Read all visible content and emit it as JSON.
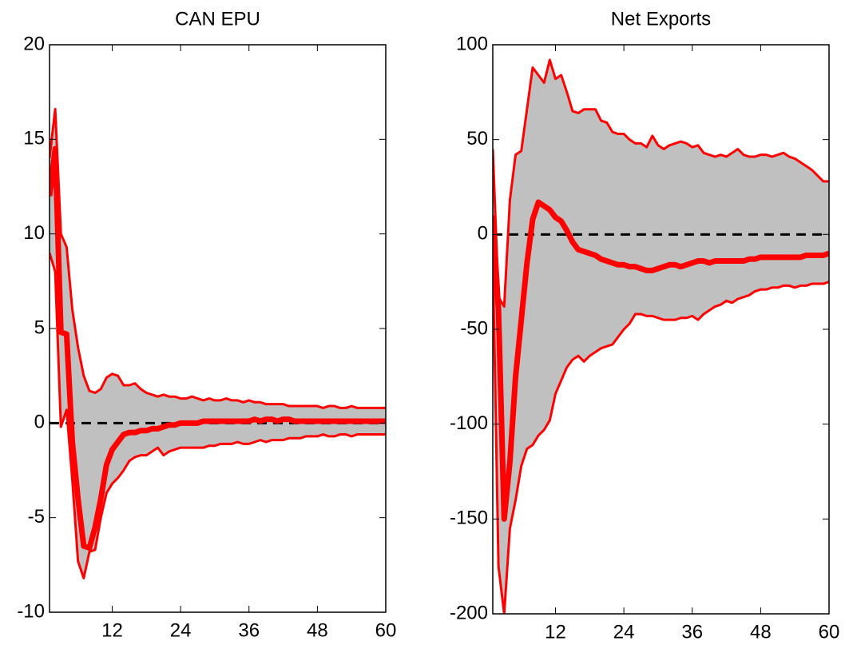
{
  "chart_data": [
    {
      "type": "line",
      "title": "CAN EPU",
      "x": [
        1,
        2,
        3,
        4,
        5,
        6,
        7,
        8,
        9,
        10,
        11,
        12,
        13,
        14,
        15,
        16,
        17,
        18,
        19,
        20,
        21,
        22,
        23,
        24,
        25,
        26,
        27,
        28,
        29,
        30,
        31,
        32,
        33,
        34,
        35,
        36,
        37,
        38,
        39,
        40,
        41,
        42,
        43,
        44,
        45,
        46,
        47,
        48,
        49,
        50,
        51,
        52,
        53,
        54,
        55,
        56,
        57,
        58,
        59,
        60
      ],
      "xlim": [
        1,
        60
      ],
      "xticks": [
        12,
        24,
        36,
        48,
        60
      ],
      "ylim": [
        -10,
        20
      ],
      "yticks": [
        -10,
        -5,
        0,
        5,
        10,
        15,
        20
      ],
      "reference_line": {
        "value": 0,
        "color": "#000000",
        "style": "dashed"
      },
      "band": {
        "fill": "#c0c0c0",
        "color": "#ff0000",
        "upper": [
          14,
          16.6,
          10,
          9.3,
          6,
          4,
          2.5,
          1.7,
          1.6,
          1.8,
          2.4,
          2.6,
          2.5,
          2,
          2,
          2.1,
          1.8,
          1.6,
          1.5,
          1.4,
          1.5,
          1.4,
          1.4,
          1.3,
          1.3,
          1.4,
          1.3,
          1.2,
          1.3,
          1.2,
          1.2,
          1.3,
          1.2,
          1.2,
          1.1,
          1.2,
          1.1,
          1.1,
          1,
          1,
          1,
          1,
          0.9,
          0.9,
          0.9,
          0.9,
          0.9,
          0.9,
          0.8,
          0.9,
          0.9,
          0.8,
          0.8,
          0.9,
          0.8,
          0.8,
          0.8,
          0.8,
          0.8,
          0.8
        ],
        "lower": [
          9,
          8,
          -0.2,
          0.7,
          -3,
          -7.3,
          -8.2,
          -6.8,
          -6.7,
          -5,
          -3.7,
          -3.2,
          -2.9,
          -2.5,
          -2,
          -1.8,
          -1.7,
          -1.7,
          -1.5,
          -1.3,
          -1.7,
          -1.5,
          -1.4,
          -1.3,
          -1.3,
          -1.3,
          -1.3,
          -1.3,
          -1.2,
          -1.2,
          -1.1,
          -1.1,
          -1.1,
          -1,
          -1.1,
          -1.1,
          -1,
          -0.9,
          -1,
          -0.9,
          -0.9,
          -0.9,
          -0.8,
          -0.8,
          -0.8,
          -0.7,
          -0.7,
          -0.7,
          -0.6,
          -0.7,
          -0.7,
          -0.6,
          -0.6,
          -0.7,
          -0.6,
          -0.6,
          -0.6,
          -0.6,
          -0.6,
          -0.6
        ]
      },
      "series": [
        {
          "color": "#ff0000",
          "values": [
            12,
            14.5,
            4.8,
            4.7,
            -1,
            -4,
            -6.5,
            -6.6,
            -5.5,
            -4,
            -2.2,
            -1.4,
            -1,
            -0.6,
            -0.5,
            -0.5,
            -0.4,
            -0.4,
            -0.3,
            -0.3,
            -0.2,
            -0.1,
            -0.1,
            0,
            0,
            0,
            0,
            0.1,
            0.1,
            0.1,
            0.1,
            0.1,
            0.1,
            0.1,
            0.1,
            0.1,
            0.2,
            0.1,
            0.2,
            0.2,
            0.1,
            0.2,
            0.2,
            0.1,
            0.1,
            0.1,
            0.1,
            0.1,
            0.1,
            0.1,
            0.1,
            0.1,
            0.1,
            0.1,
            0.1,
            0.1,
            0.1,
            0.1,
            0.1,
            0.1
          ]
        }
      ]
    },
    {
      "type": "line",
      "title": "Net Exports",
      "x": [
        1,
        2,
        3,
        4,
        5,
        6,
        7,
        8,
        9,
        10,
        11,
        12,
        13,
        14,
        15,
        16,
        17,
        18,
        19,
        20,
        21,
        22,
        23,
        24,
        25,
        26,
        27,
        28,
        29,
        30,
        31,
        32,
        33,
        34,
        35,
        36,
        37,
        38,
        39,
        40,
        41,
        42,
        43,
        44,
        45,
        46,
        47,
        48,
        49,
        50,
        51,
        52,
        53,
        54,
        55,
        56,
        57,
        58,
        59,
        60
      ],
      "xlim": [
        1,
        60
      ],
      "xticks": [
        12,
        24,
        36,
        48,
        60
      ],
      "ylim": [
        -200,
        100
      ],
      "yticks": [
        -200,
        -150,
        -100,
        -50,
        0,
        50,
        100
      ],
      "reference_line": {
        "value": 0,
        "color": "#000000",
        "style": "dashed"
      },
      "band": {
        "fill": "#c0c0c0",
        "color": "#ff0000",
        "upper": [
          45,
          -33,
          -38,
          18,
          42,
          44,
          66,
          88,
          84,
          80,
          92,
          82,
          84,
          75,
          65,
          64,
          66,
          66,
          66,
          60,
          59,
          54,
          53,
          53,
          50,
          48,
          48,
          46,
          52,
          47,
          45,
          47,
          48,
          49,
          48,
          46,
          47,
          43,
          42,
          41,
          42,
          41,
          43,
          45,
          42,
          41,
          41,
          42,
          42,
          41,
          42,
          43,
          41,
          40,
          38,
          36,
          34,
          31,
          28,
          28
        ],
        "lower": [
          -10,
          -175,
          -200,
          -155,
          -140,
          -122,
          -113,
          -111,
          -106,
          -103,
          -98,
          -84,
          -77,
          -70,
          -66,
          -64,
          -67,
          -64,
          -62,
          -60,
          -59,
          -58,
          -54,
          -50,
          -47,
          -42,
          -42,
          -43,
          -43,
          -44,
          -45,
          -45,
          -45,
          -44,
          -44,
          -43,
          -45,
          -42,
          -40,
          -38,
          -37,
          -35,
          -36,
          -34,
          -33,
          -32,
          -30,
          -29,
          -29,
          -28,
          -28,
          -27,
          -27,
          -28,
          -27,
          -27,
          -26,
          -26,
          -26,
          -25
        ]
      },
      "series": [
        {
          "color": "#ff0000",
          "values": [
            10,
            -40,
            -150,
            -120,
            -75,
            -45,
            -15,
            8,
            17,
            15,
            13,
            9,
            7,
            2,
            -4,
            -8,
            -9,
            -10,
            -11,
            -13,
            -14,
            -15,
            -16,
            -16,
            -17,
            -17,
            -18,
            -19,
            -19,
            -18,
            -17,
            -16,
            -16,
            -17,
            -16,
            -15,
            -14,
            -14,
            -15,
            -14,
            -14,
            -14,
            -14,
            -14,
            -14,
            -13,
            -13,
            -12,
            -12,
            -12,
            -12,
            -12,
            -12,
            -12,
            -12,
            -11,
            -11,
            -11,
            -11,
            -10
          ]
        }
      ]
    }
  ]
}
